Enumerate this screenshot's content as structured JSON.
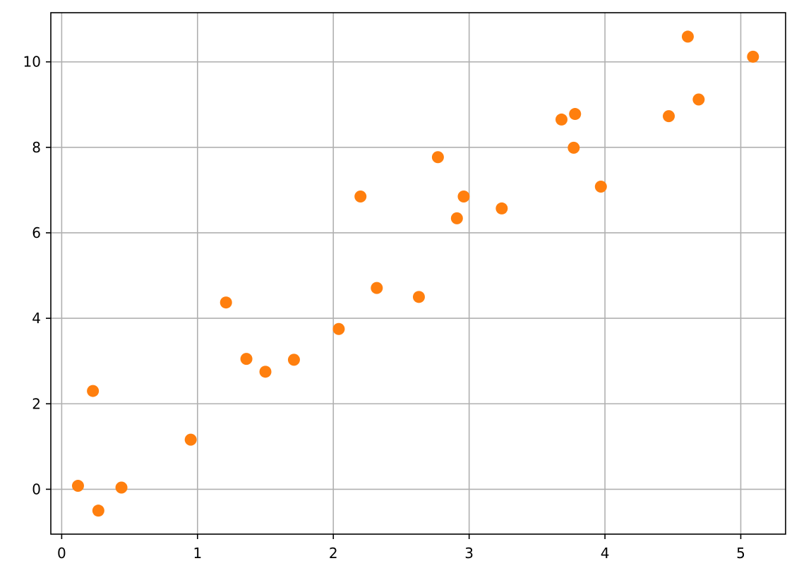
{
  "chart_data": {
    "type": "scatter",
    "title": "",
    "xlabel": "",
    "ylabel": "",
    "xlim": [
      -0.08,
      5.33
    ],
    "ylim": [
      -1.05,
      11.15
    ],
    "xticks": [
      0,
      1,
      2,
      3,
      4,
      5
    ],
    "yticks": [
      0,
      2,
      4,
      6,
      8,
      10
    ],
    "grid": true,
    "legend": "none",
    "marker_color": "#ff7f0e",
    "grid_color": "#b0b0b0",
    "points": [
      {
        "x": 0.12,
        "y": 0.08
      },
      {
        "x": 0.23,
        "y": 2.3
      },
      {
        "x": 0.27,
        "y": -0.5
      },
      {
        "x": 0.44,
        "y": 0.04
      },
      {
        "x": 0.95,
        "y": 1.16
      },
      {
        "x": 1.21,
        "y": 4.37
      },
      {
        "x": 1.36,
        "y": 3.05
      },
      {
        "x": 1.5,
        "y": 2.75
      },
      {
        "x": 1.71,
        "y": 3.03
      },
      {
        "x": 2.04,
        "y": 3.75
      },
      {
        "x": 2.2,
        "y": 6.85
      },
      {
        "x": 2.32,
        "y": 4.71
      },
      {
        "x": 2.63,
        "y": 4.5
      },
      {
        "x": 2.77,
        "y": 7.77
      },
      {
        "x": 2.91,
        "y": 6.34
      },
      {
        "x": 2.96,
        "y": 6.85
      },
      {
        "x": 3.24,
        "y": 6.57
      },
      {
        "x": 3.68,
        "y": 8.65
      },
      {
        "x": 3.77,
        "y": 7.99
      },
      {
        "x": 3.78,
        "y": 8.78
      },
      {
        "x": 3.97,
        "y": 7.08
      },
      {
        "x": 4.47,
        "y": 8.73
      },
      {
        "x": 4.61,
        "y": 10.59
      },
      {
        "x": 4.69,
        "y": 9.12
      },
      {
        "x": 5.09,
        "y": 10.12
      }
    ]
  }
}
